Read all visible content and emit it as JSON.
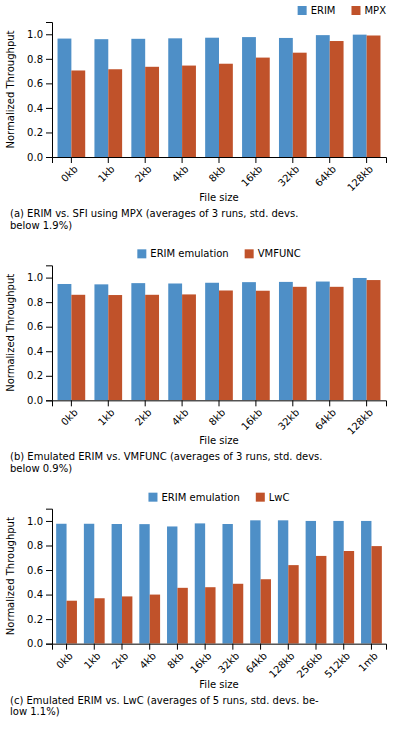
{
  "chart_data": [
    {
      "type": "bar",
      "xlabel": "File size",
      "ylabel": "Normalized Throughput",
      "caption": "(a) ERIM vs. SFI using MPX (averages of 3 runs, std. devs.\nbelow 1.9%)",
      "categories": [
        "0kb",
        "1kb",
        "2kb",
        "4kb",
        "8kb",
        "16kb",
        "32kb",
        "64kb",
        "128kb"
      ],
      "series": [
        {
          "name": "ERIM",
          "color": "#4e8fc7",
          "values": [
            0.965,
            0.96,
            0.963,
            0.967,
            0.972,
            0.977,
            0.97,
            0.993,
            0.997
          ]
        },
        {
          "name": "MPX",
          "color": "#c0522a",
          "values": [
            0.705,
            0.715,
            0.735,
            0.745,
            0.76,
            0.81,
            0.85,
            0.945,
            0.99
          ]
        }
      ],
      "ylim": [
        0,
        1.1
      ],
      "yticks": [
        {
          "value": 0,
          "label": "0.0"
        },
        0.2,
        0.4,
        0.6,
        0.8,
        {
          "value": 1.0,
          "label": "1.0"
        }
      ],
      "legend": "upper right",
      "grid": false
    },
    {
      "type": "bar",
      "xlabel": "File size",
      "ylabel": "Normalized Throughput",
      "caption": "(b) Emulated ERIM vs. VMFUNC (averages of 3 runs, std. devs.\nbelow 0.9%)",
      "categories": [
        "0kb",
        "1kb",
        "2kb",
        "4kb",
        "8kb",
        "16kb",
        "32kb",
        "64kb",
        "128kb"
      ],
      "series": [
        {
          "name": "ERIM emulation",
          "color": "#4e8fc7",
          "values": [
            0.948,
            0.945,
            0.955,
            0.952,
            0.958,
            0.963,
            0.965,
            0.968,
            0.997
          ]
        },
        {
          "name": "VMFUNC",
          "color": "#c0522a",
          "values": [
            0.86,
            0.858,
            0.86,
            0.863,
            0.895,
            0.893,
            0.925,
            0.925,
            0.98
          ]
        }
      ],
      "ylim": [
        0,
        1.1
      ],
      "yticks": [
        {
          "value": 0,
          "label": "0.0"
        },
        0.2,
        0.4,
        0.6,
        0.8,
        {
          "value": 1.0,
          "label": "1.0"
        }
      ],
      "legend": "upper center",
      "grid": false
    },
    {
      "type": "bar",
      "xlabel": "File size",
      "ylabel": "Normalized Throughput",
      "caption": "(c) Emulated ERIM vs. LwC (averages of 5 runs, std. devs. be-\nlow 1.1%)",
      "categories": [
        "0kb",
        "1kb",
        "2kb",
        "4kb",
        "8kb",
        "16kb",
        "32kb",
        "64kb",
        "128kb",
        "256kb",
        "512kb",
        "1mb"
      ],
      "series": [
        {
          "name": "ERIM emulation",
          "color": "#4e8fc7",
          "values": [
            0.977,
            0.977,
            0.975,
            0.974,
            0.955,
            0.98,
            0.975,
            1.005,
            1.005,
            1.0,
            1.0,
            1.0
          ]
        },
        {
          "name": "LwC",
          "color": "#c0522a",
          "values": [
            0.35,
            0.37,
            0.385,
            0.4,
            0.455,
            0.46,
            0.488,
            0.525,
            0.64,
            0.715,
            0.755,
            0.795
          ]
        }
      ],
      "ylim": [
        0,
        1.1
      ],
      "yticks": [
        {
          "value": 0,
          "label": "0.0"
        },
        0.2,
        0.4,
        0.6,
        0.8,
        {
          "value": 1.0,
          "label": "1.0"
        }
      ],
      "legend": "upper center",
      "grid": false
    }
  ]
}
